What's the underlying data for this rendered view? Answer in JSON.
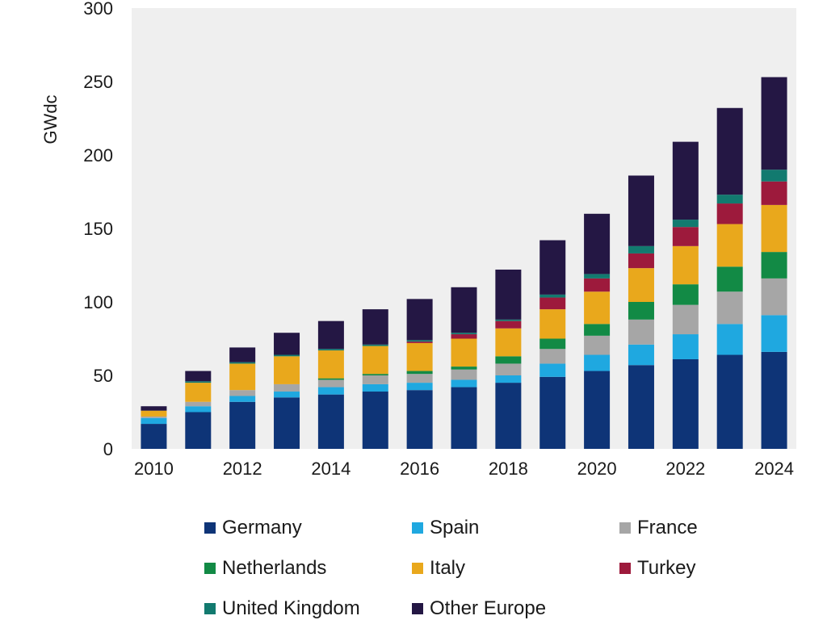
{
  "chart_data": {
    "type": "bar",
    "stacked": true,
    "title": "",
    "xlabel": "",
    "ylabel": "GWdc",
    "ylim": [
      0,
      300
    ],
    "yticks": [
      0,
      50,
      100,
      150,
      200,
      250,
      300
    ],
    "categories": [
      "2010",
      "2011",
      "2012",
      "2013",
      "2014",
      "2015",
      "2016",
      "2017",
      "2018",
      "2019",
      "2020",
      "2021",
      "2022",
      "2023",
      "2024"
    ],
    "xtick_labels": [
      "2010",
      "",
      "2012",
      "",
      "2014",
      "",
      "2016",
      "",
      "2018",
      "",
      "2020",
      "",
      "2022",
      "",
      "2024"
    ],
    "series": [
      {
        "name": "Germany",
        "color": "#0e3477",
        "values": [
          17,
          25,
          32,
          35,
          37,
          39,
          40,
          42,
          45,
          49,
          53,
          57,
          61,
          64,
          66
        ]
      },
      {
        "name": "Spain",
        "color": "#1fa8e0",
        "values": [
          4,
          4,
          4,
          4,
          5,
          5,
          5,
          5,
          5,
          9,
          11,
          14,
          17,
          21,
          25
        ]
      },
      {
        "name": "France",
        "color": "#a6a6a6",
        "values": [
          1,
          3,
          4,
          5,
          5,
          6,
          6,
          7,
          8,
          10,
          13,
          17,
          20,
          22,
          25
        ]
      },
      {
        "name": "Netherlands",
        "color": "#128a45",
        "values": [
          0,
          0,
          0,
          0,
          1,
          1,
          2,
          2,
          5,
          7,
          8,
          12,
          14,
          17,
          18
        ]
      },
      {
        "name": "Italy",
        "color": "#e9a81c",
        "values": [
          4,
          13,
          18,
          19,
          19,
          19,
          19,
          19,
          19,
          20,
          22,
          23,
          26,
          29,
          32
        ]
      },
      {
        "name": "Turkey",
        "color": "#9d1a3c",
        "values": [
          0,
          0,
          0,
          0,
          0,
          0,
          1,
          3,
          5,
          8,
          9,
          10,
          13,
          14,
          16
        ]
      },
      {
        "name": "United Kingdom",
        "color": "#127a6f",
        "values": [
          0,
          1,
          1,
          1,
          1,
          1,
          1,
          1,
          1,
          2,
          3,
          5,
          5,
          6,
          8
        ]
      },
      {
        "name": "Other Europe",
        "color": "#241744",
        "values": [
          3,
          7,
          10,
          15,
          19,
          24,
          28,
          31,
          34,
          37,
          41,
          48,
          53,
          59,
          63
        ]
      }
    ],
    "legend": "bottom",
    "grid": false,
    "background": "#efefef"
  },
  "legend_labels": [
    "Germany",
    "Spain",
    "France",
    "Netherlands",
    "Italy",
    "Turkey",
    "United Kingdom",
    "Other Europe"
  ]
}
